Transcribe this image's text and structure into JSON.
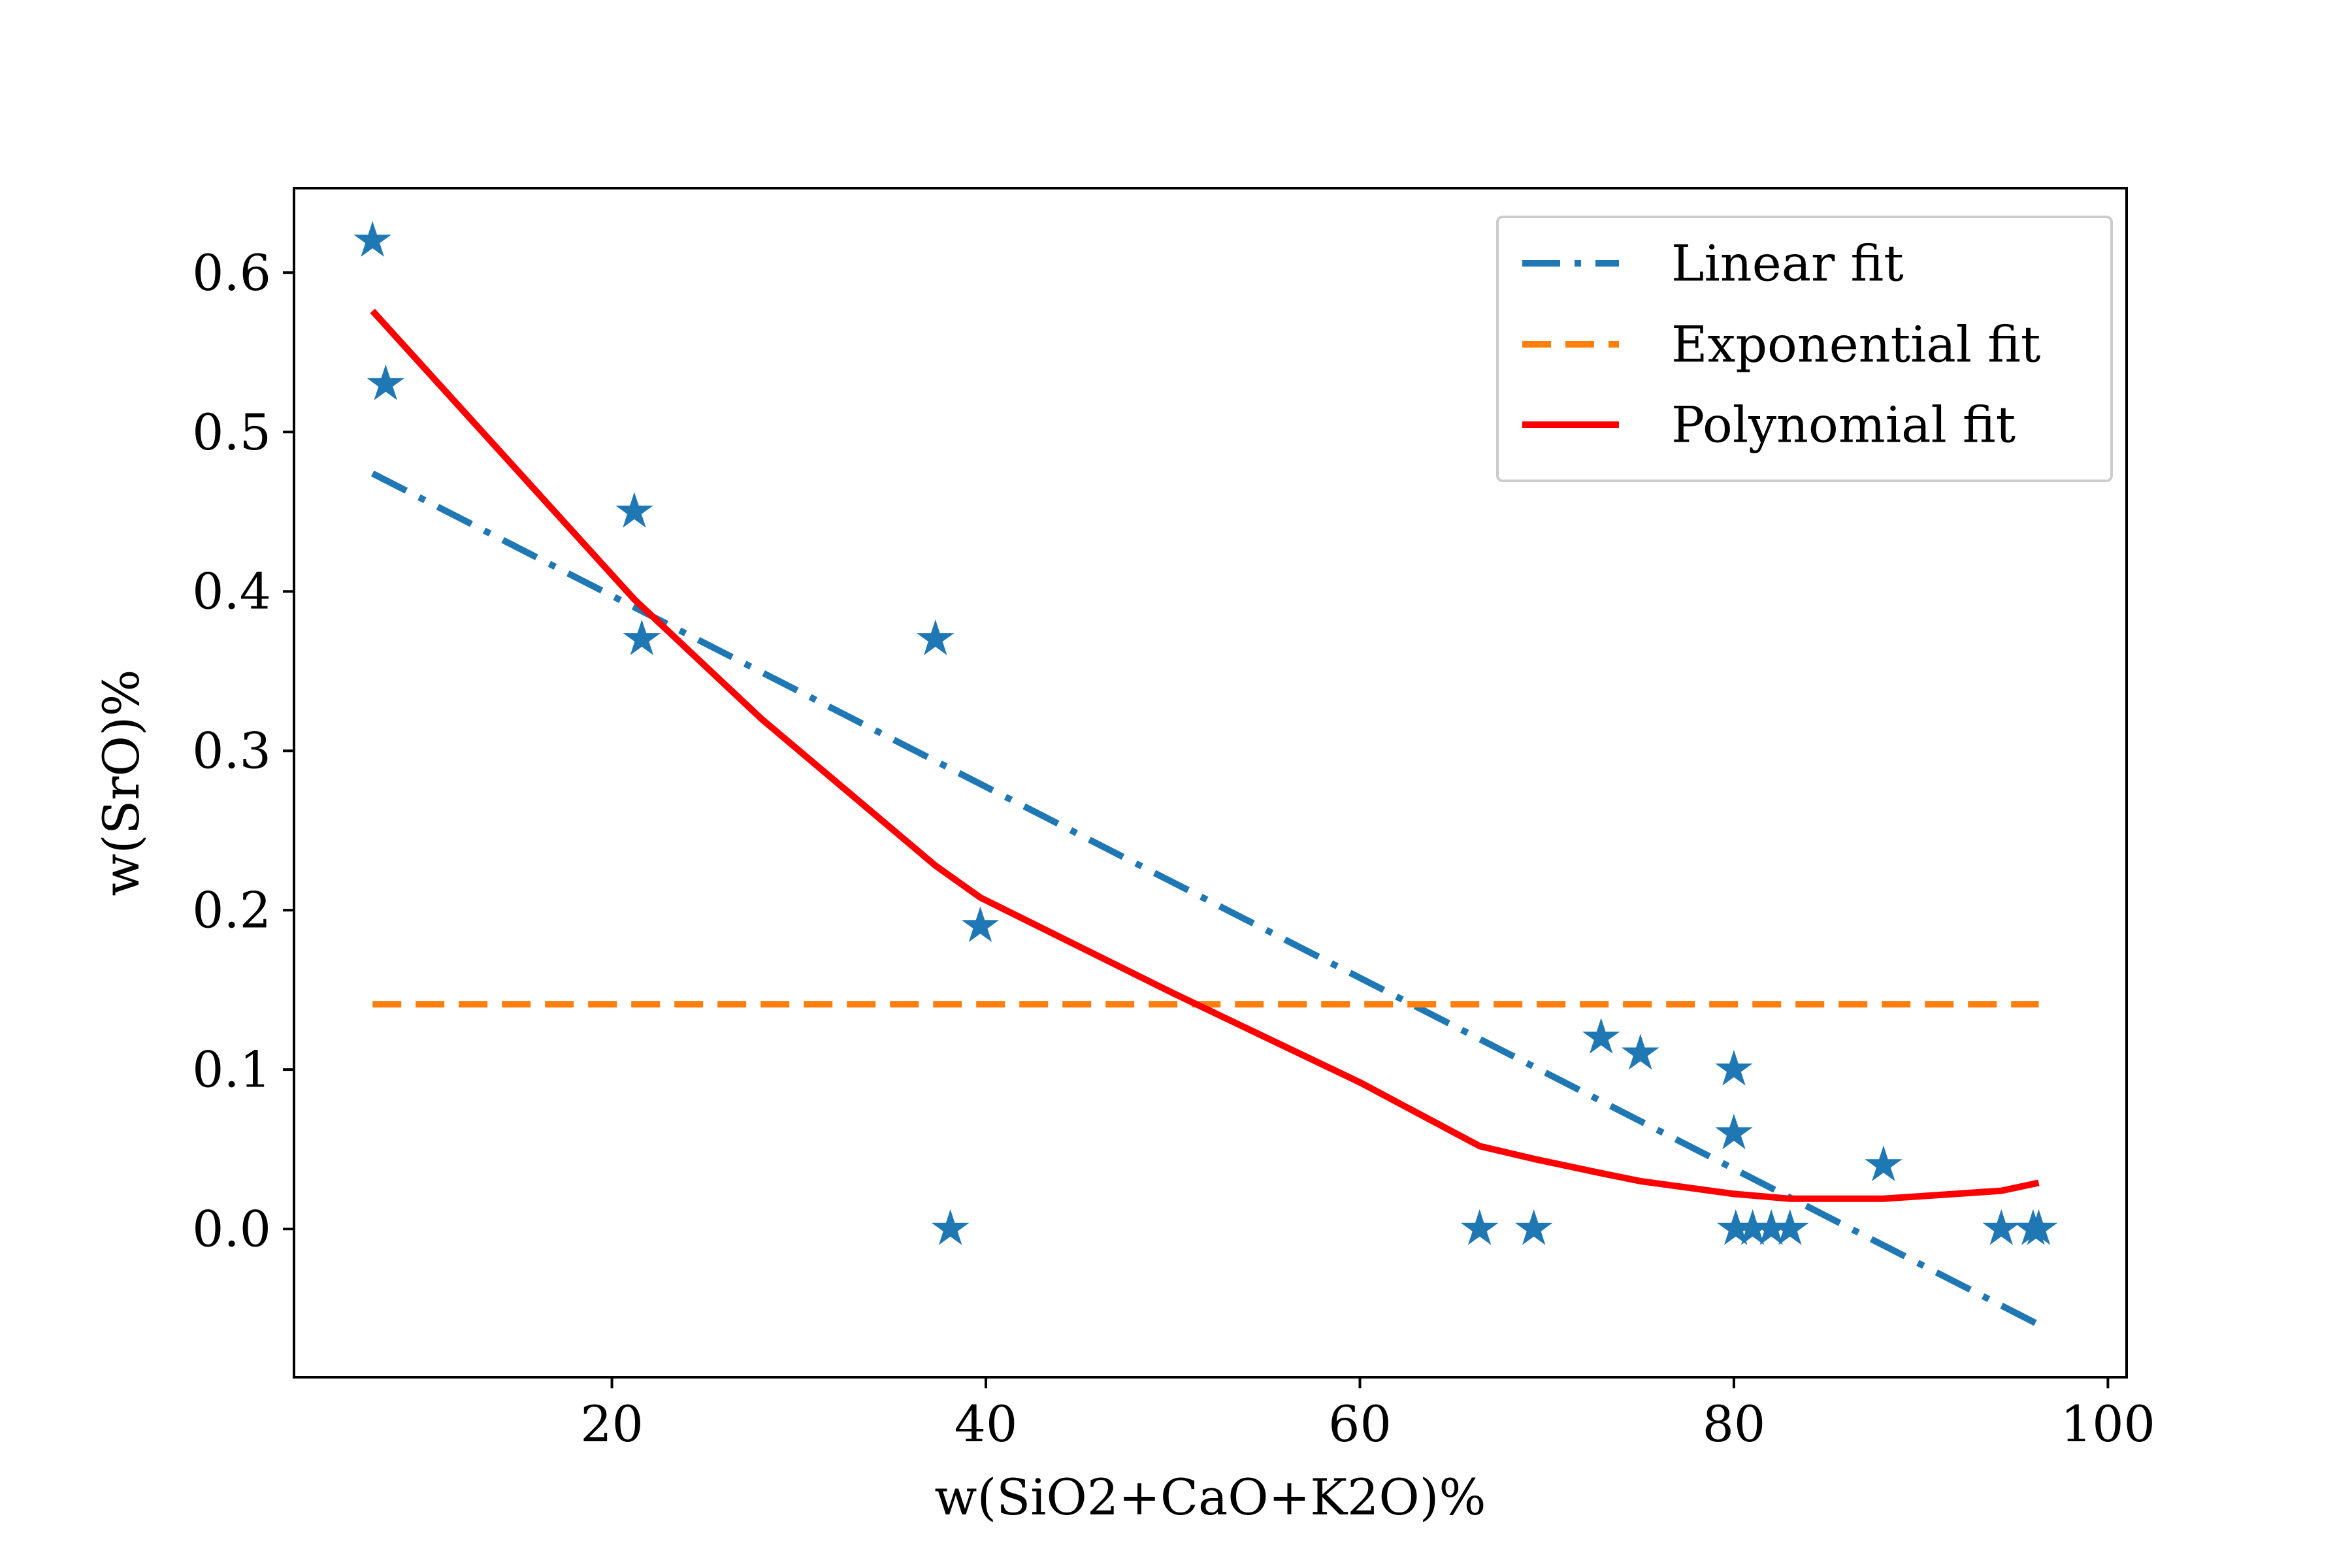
{
  "chart_data": {
    "type": "scatter",
    "title": "",
    "xlabel": "w(SiO2+CaO+K2O)%",
    "ylabel": "w(SrO)%",
    "xlim": [
      3.0,
      101.0
    ],
    "ylim": [
      -0.093,
      0.653
    ],
    "xticks": [
      20,
      40,
      60,
      80,
      100
    ],
    "yticks": [
      0.0,
      0.1,
      0.2,
      0.3,
      0.4,
      0.5,
      0.6
    ],
    "xtick_labels": [
      "20",
      "40",
      "60",
      "80",
      "100"
    ],
    "ytick_labels": [
      "0.0",
      "0.1",
      "0.2",
      "0.3",
      "0.4",
      "0.5",
      "0.6"
    ],
    "grid": false,
    "legend": {
      "position": "upper right",
      "entries": [
        "Linear fit",
        "Exponential fit",
        "Polynomial fit"
      ]
    },
    "points": {
      "marker": "star",
      "color": "#1f77b4",
      "x": [
        7.2,
        7.9,
        21.2,
        21.6,
        37.3,
        38.1,
        39.7,
        66.4,
        69.3,
        72.9,
        75.0,
        80.0,
        80.0,
        80.1,
        81.0,
        82.0,
        83.0,
        88.0,
        94.3,
        96.0,
        96.3
      ],
      "y": [
        0.62,
        0.53,
        0.45,
        0.37,
        0.37,
        0.0,
        0.19,
        0.0,
        0.0,
        0.12,
        0.11,
        0.1,
        0.06,
        0.0,
        0.0,
        0.0,
        0.0,
        0.04,
        0.0,
        0.0,
        0.0
      ]
    },
    "series": [
      {
        "name": "Linear fit",
        "style": "dashdot",
        "color": "#1f77b4",
        "x": [
          7.2,
          96.3
        ],
        "y": [
          0.474,
          -0.06
        ]
      },
      {
        "name": "Exponential fit",
        "style": "dashed",
        "color": "#ff7f0e",
        "x": [
          7.2,
          96.3
        ],
        "y": [
          0.141,
          0.141
        ]
      },
      {
        "name": "Polynomial fit",
        "style": "solid",
        "color": "#ff0000",
        "x": [
          7.2,
          21.2,
          28.0,
          37.3,
          39.7,
          50.0,
          60.0,
          66.4,
          69.3,
          72.9,
          75.0,
          80.0,
          83.0,
          88.0,
          94.3,
          96.3
        ],
        "y": [
          0.576,
          0.395,
          0.32,
          0.228,
          0.208,
          0.148,
          0.092,
          0.052,
          0.044,
          0.035,
          0.03,
          0.022,
          0.019,
          0.019,
          0.024,
          0.029
        ]
      }
    ]
  }
}
